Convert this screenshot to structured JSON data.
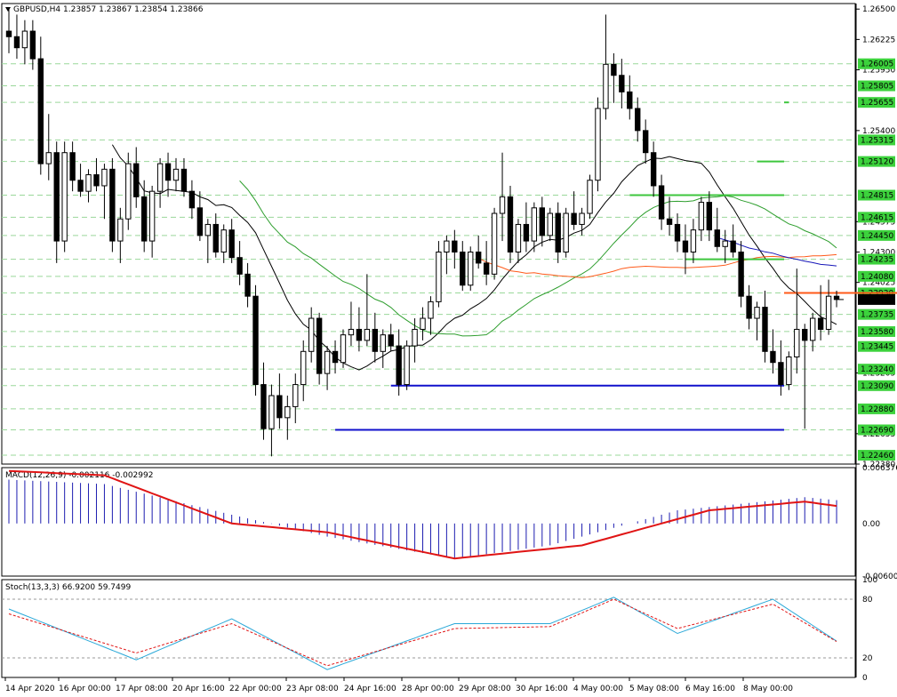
{
  "header": {
    "symbol": "GBPUSD,H4",
    "ohlc": "1.23857 1.23867 1.23854 1.23866"
  },
  "colors": {
    "green": "#3ec63e",
    "blue": "#1111cc",
    "orange": "#ff5a1a",
    "red": "#e31414",
    "ma_black": "#000000",
    "ma_green": "#2e9e2e",
    "ma_orange": "#ff5a1a",
    "ma_blue": "#1616b8",
    "macd_hist": "#1c1cb0",
    "macd_signal": "#e01414",
    "stoch_main": "#2aa8d8",
    "stoch_signal": "#e01414",
    "label_bg": "#3cd23c",
    "price_bg": "#000000"
  },
  "chart_data": [
    {
      "type": "candlestick",
      "symbol": "GBPUSD",
      "timeframe": "H4",
      "ylim": [
        1.2238,
        1.2655
      ],
      "y_axis_labels": [
        "1.26500",
        "1.26225",
        "1.25950",
        "1.25400",
        "1.24575",
        "1.24300",
        "1.24025",
        "1.23205",
        "1.22655",
        "1.22380"
      ],
      "level_labels": [
        "1.26005",
        "1.25805",
        "1.25655",
        "1.25315",
        "1.25120",
        "1.24815",
        "1.24615",
        "1.24450",
        "1.24235",
        "1.24080",
        "1.23930",
        "1.23735",
        "1.23580",
        "1.23445",
        "1.23240",
        "1.23090",
        "1.22880",
        "1.22690",
        "1.22460"
      ],
      "current_price_label": "1.23866",
      "x_axis_labels": [
        "14 Apr 2020",
        "16 Apr 00:00",
        "17 Apr 08:00",
        "20 Apr 16:00",
        "22 Apr 00:00",
        "23 Apr 08:00",
        "24 Apr 16:00",
        "28 Apr 00:00",
        "29 Apr 08:00",
        "30 Apr 16:00",
        "4 May 00:00",
        "5 May 08:00",
        "6 May 16:00",
        "8 May 00:00"
      ],
      "horizontal_levels": [
        {
          "price": 1.25655,
          "color": "green",
          "from_bar": 98
        },
        {
          "price": 1.2512,
          "color": "green",
          "from_bar": 94
        },
        {
          "price": 1.24815,
          "color": "green",
          "from_bar": 78
        },
        {
          "price": 1.24235,
          "color": "green",
          "from_bar": 85
        },
        {
          "price": 1.2393,
          "color": "orange",
          "from_bar": 126
        },
        {
          "price": 1.2309,
          "color": "blue",
          "from_bar": 48
        },
        {
          "price": 1.2269,
          "color": "blue",
          "from_bar": 41
        }
      ],
      "candles": [
        [
          1.263,
          1.265,
          1.261,
          1.2625
        ],
        [
          1.2625,
          1.2645,
          1.2605,
          1.2615
        ],
        [
          1.2615,
          1.264,
          1.26,
          1.263
        ],
        [
          1.263,
          1.264,
          1.2595,
          1.2605
        ],
        [
          1.2605,
          1.2625,
          1.25,
          1.251
        ],
        [
          1.251,
          1.2555,
          1.2495,
          1.252
        ],
        [
          1.252,
          1.253,
          1.242,
          1.244
        ],
        [
          1.244,
          1.253,
          1.243,
          1.252
        ],
        [
          1.252,
          1.253,
          1.2485,
          1.2495
        ],
        [
          1.2495,
          1.251,
          1.248,
          1.2485
        ],
        [
          1.2485,
          1.2505,
          1.2475,
          1.25
        ],
        [
          1.25,
          1.2515,
          1.2485,
          1.249
        ],
        [
          1.249,
          1.251,
          1.246,
          1.2505
        ],
        [
          1.2505,
          1.2515,
          1.243,
          1.244
        ],
        [
          1.244,
          1.247,
          1.242,
          1.246
        ],
        [
          1.246,
          1.252,
          1.245,
          1.251
        ],
        [
          1.251,
          1.2525,
          1.247,
          1.248
        ],
        [
          1.248,
          1.2495,
          1.243,
          1.244
        ],
        [
          1.244,
          1.249,
          1.2425,
          1.2485
        ],
        [
          1.2485,
          1.2515,
          1.247,
          1.251
        ],
        [
          1.251,
          1.252,
          1.248,
          1.2495
        ],
        [
          1.2495,
          1.2515,
          1.2485,
          1.2505
        ],
        [
          1.2505,
          1.2515,
          1.248,
          1.2485
        ],
        [
          1.2485,
          1.2495,
          1.246,
          1.247
        ],
        [
          1.247,
          1.2485,
          1.244,
          1.2445
        ],
        [
          1.2445,
          1.246,
          1.242,
          1.2455
        ],
        [
          1.2455,
          1.2465,
          1.2425,
          1.243
        ],
        [
          1.243,
          1.2455,
          1.242,
          1.245
        ],
        [
          1.245,
          1.246,
          1.242,
          1.2425
        ],
        [
          1.2425,
          1.244,
          1.24,
          1.241
        ],
        [
          1.241,
          1.242,
          1.238,
          1.239
        ],
        [
          1.239,
          1.24,
          1.23,
          1.231
        ],
        [
          1.231,
          1.233,
          1.226,
          1.227
        ],
        [
          1.227,
          1.231,
          1.2245,
          1.23
        ],
        [
          1.23,
          1.232,
          1.227,
          1.228
        ],
        [
          1.228,
          1.23,
          1.226,
          1.229
        ],
        [
          1.229,
          1.232,
          1.2275,
          1.231
        ],
        [
          1.231,
          1.235,
          1.2295,
          1.234
        ],
        [
          1.234,
          1.238,
          1.233,
          1.237
        ],
        [
          1.237,
          1.2375,
          1.231,
          1.232
        ],
        [
          1.232,
          1.2345,
          1.2305,
          1.234
        ],
        [
          1.234,
          1.235,
          1.232,
          1.233
        ],
        [
          1.233,
          1.236,
          1.2325,
          1.2355
        ],
        [
          1.2355,
          1.2385,
          1.2345,
          1.236
        ],
        [
          1.236,
          1.238,
          1.234,
          1.235
        ],
        [
          1.235,
          1.241,
          1.2345,
          1.236
        ],
        [
          1.236,
          1.2375,
          1.233,
          1.234
        ],
        [
          1.234,
          1.236,
          1.2325,
          1.2355
        ],
        [
          1.2355,
          1.2365,
          1.234,
          1.2345
        ],
        [
          1.2345,
          1.236,
          1.23,
          1.231
        ],
        [
          1.231,
          1.235,
          1.2305,
          1.2345
        ],
        [
          1.2345,
          1.237,
          1.233,
          1.236
        ],
        [
          1.236,
          1.238,
          1.235,
          1.237
        ],
        [
          1.237,
          1.239,
          1.2355,
          1.2385
        ],
        [
          1.2385,
          1.244,
          1.238,
          1.243
        ],
        [
          1.243,
          1.2445,
          1.241,
          1.244
        ],
        [
          1.244,
          1.245,
          1.2415,
          1.243
        ],
        [
          1.243,
          1.244,
          1.2395,
          1.24
        ],
        [
          1.24,
          1.2435,
          1.2395,
          1.243
        ],
        [
          1.243,
          1.2445,
          1.2415,
          1.242
        ],
        [
          1.242,
          1.244,
          1.24,
          1.241
        ],
        [
          1.241,
          1.247,
          1.2405,
          1.2465
        ],
        [
          1.2465,
          1.252,
          1.244,
          1.248
        ],
        [
          1.248,
          1.249,
          1.242,
          1.243
        ],
        [
          1.243,
          1.246,
          1.242,
          1.2455
        ],
        [
          1.2455,
          1.2475,
          1.243,
          1.244
        ],
        [
          1.244,
          1.2475,
          1.243,
          1.247
        ],
        [
          1.247,
          1.248,
          1.2435,
          1.2445
        ],
        [
          1.2445,
          1.247,
          1.244,
          1.2465
        ],
        [
          1.2465,
          1.2475,
          1.242,
          1.243
        ],
        [
          1.243,
          1.247,
          1.2425,
          1.2465
        ],
        [
          1.2465,
          1.2485,
          1.245,
          1.2455
        ],
        [
          1.2455,
          1.247,
          1.2445,
          1.2465
        ],
        [
          1.2465,
          1.25,
          1.246,
          1.2495
        ],
        [
          1.2495,
          1.257,
          1.2485,
          1.256
        ],
        [
          1.256,
          1.2645,
          1.255,
          1.26
        ],
        [
          1.26,
          1.261,
          1.2565,
          1.259
        ],
        [
          1.259,
          1.2605,
          1.256,
          1.2575
        ],
        [
          1.2575,
          1.259,
          1.255,
          1.256
        ],
        [
          1.256,
          1.257,
          1.253,
          1.254
        ],
        [
          1.254,
          1.255,
          1.251,
          1.252
        ],
        [
          1.252,
          1.253,
          1.248,
          1.249
        ],
        [
          1.249,
          1.25,
          1.245,
          1.246
        ],
        [
          1.246,
          1.248,
          1.2445,
          1.2455
        ],
        [
          1.2455,
          1.2465,
          1.243,
          1.244
        ],
        [
          1.244,
          1.2455,
          1.241,
          1.243
        ],
        [
          1.243,
          1.246,
          1.242,
          1.245
        ],
        [
          1.245,
          1.248,
          1.244,
          1.2475
        ],
        [
          1.2475,
          1.2485,
          1.244,
          1.245
        ],
        [
          1.245,
          1.247,
          1.243,
          1.2435
        ],
        [
          1.2435,
          1.245,
          1.242,
          1.244
        ],
        [
          1.244,
          1.2455,
          1.2425,
          1.243
        ],
        [
          1.243,
          1.244,
          1.238,
          1.239
        ],
        [
          1.239,
          1.24,
          1.236,
          1.237
        ],
        [
          1.237,
          1.2385,
          1.235,
          1.238
        ],
        [
          1.238,
          1.2395,
          1.233,
          1.234
        ],
        [
          1.234,
          1.236,
          1.232,
          1.233
        ],
        [
          1.233,
          1.235,
          1.23,
          1.231
        ],
        [
          1.231,
          1.234,
          1.2305,
          1.2335
        ],
        [
          1.2335,
          1.2415,
          1.232,
          1.236
        ],
        [
          1.236,
          1.2365,
          1.227,
          1.235
        ],
        [
          1.235,
          1.2375,
          1.234,
          1.237
        ],
        [
          1.237,
          1.24,
          1.235,
          1.236
        ],
        [
          1.236,
          1.2405,
          1.2355,
          1.239
        ],
        [
          1.239,
          1.2395,
          1.238,
          1.2387
        ]
      ],
      "moving_averages": [
        {
          "color": "ma_black",
          "period_hint": "short"
        },
        {
          "color": "ma_green",
          "period_hint": "medium"
        },
        {
          "color": "ma_orange",
          "period_hint": "long"
        },
        {
          "color": "ma_blue",
          "period_hint": "longest"
        }
      ]
    },
    {
      "type": "macd",
      "label": "MACD(12,26,9) -0.002116 -0.002992",
      "ylim": [
        -0.006006,
        0.006376
      ],
      "y_axis_labels": [
        "0.006376",
        "0.00",
        "-0.006006"
      ],
      "histogram_pairs": [
        [
          0,
          0.005
        ],
        [
          12,
          0.0045
        ],
        [
          28,
          0.001
        ],
        [
          40,
          -0.0015
        ],
        [
          56,
          -0.004
        ],
        [
          68,
          -0.0025
        ],
        [
          84,
          0.0015
        ],
        [
          100,
          0.003
        ],
        [
          112,
          0.002
        ],
        [
          118,
          0.0
        ],
        [
          128,
          -0.0015
        ],
        [
          142,
          -0.0025
        ]
      ],
      "signal_pairs": [
        [
          0,
          0.006
        ],
        [
          12,
          0.0055
        ],
        [
          28,
          0.0
        ],
        [
          40,
          -0.001
        ],
        [
          56,
          -0.004
        ],
        [
          72,
          -0.0025
        ],
        [
          88,
          0.0015
        ],
        [
          100,
          0.0025
        ],
        [
          112,
          0.001
        ],
        [
          118,
          0.0
        ],
        [
          128,
          -0.0012
        ],
        [
          142,
          -0.003
        ]
      ]
    },
    {
      "type": "stochastic",
      "label": "Stoch(13,3,3) 66.9200 59.7499",
      "ylim": [
        0,
        100
      ],
      "y_axis_labels": [
        "100",
        "80",
        "20",
        "0"
      ],
      "main_pairs": [
        [
          0,
          70
        ],
        [
          16,
          18
        ],
        [
          28,
          60
        ],
        [
          40,
          8
        ],
        [
          56,
          55
        ],
        [
          68,
          55
        ],
        [
          76,
          82
        ],
        [
          84,
          45
        ],
        [
          96,
          80
        ],
        [
          110,
          5
        ],
        [
          120,
          20
        ],
        [
          136,
          10
        ],
        [
          142,
          65
        ]
      ],
      "signal_pairs": [
        [
          0,
          65
        ],
        [
          16,
          25
        ],
        [
          28,
          55
        ],
        [
          40,
          12
        ],
        [
          56,
          50
        ],
        [
          68,
          52
        ],
        [
          76,
          80
        ],
        [
          84,
          50
        ],
        [
          96,
          75
        ],
        [
          110,
          8
        ],
        [
          120,
          18
        ],
        [
          136,
          15
        ],
        [
          142,
          60
        ]
      ]
    }
  ]
}
